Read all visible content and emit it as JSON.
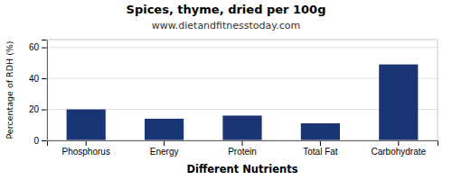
{
  "chart_data": {
    "type": "bar",
    "title": "Spices, thyme, dried per 100g",
    "subtitle": "www.dietandfitnesstoday.com",
    "xlabel": "Different Nutrients",
    "ylabel": "Percentage of RDH (%)",
    "categories": [
      "Phosphorus",
      "Energy",
      "Protein",
      "Total Fat",
      "Carbohydrate"
    ],
    "values": [
      20,
      14,
      16,
      11,
      49
    ],
    "color": "#1a3575",
    "ylim": [
      0,
      65
    ],
    "yticks": [
      0,
      20,
      40,
      60
    ],
    "grid": true
  }
}
